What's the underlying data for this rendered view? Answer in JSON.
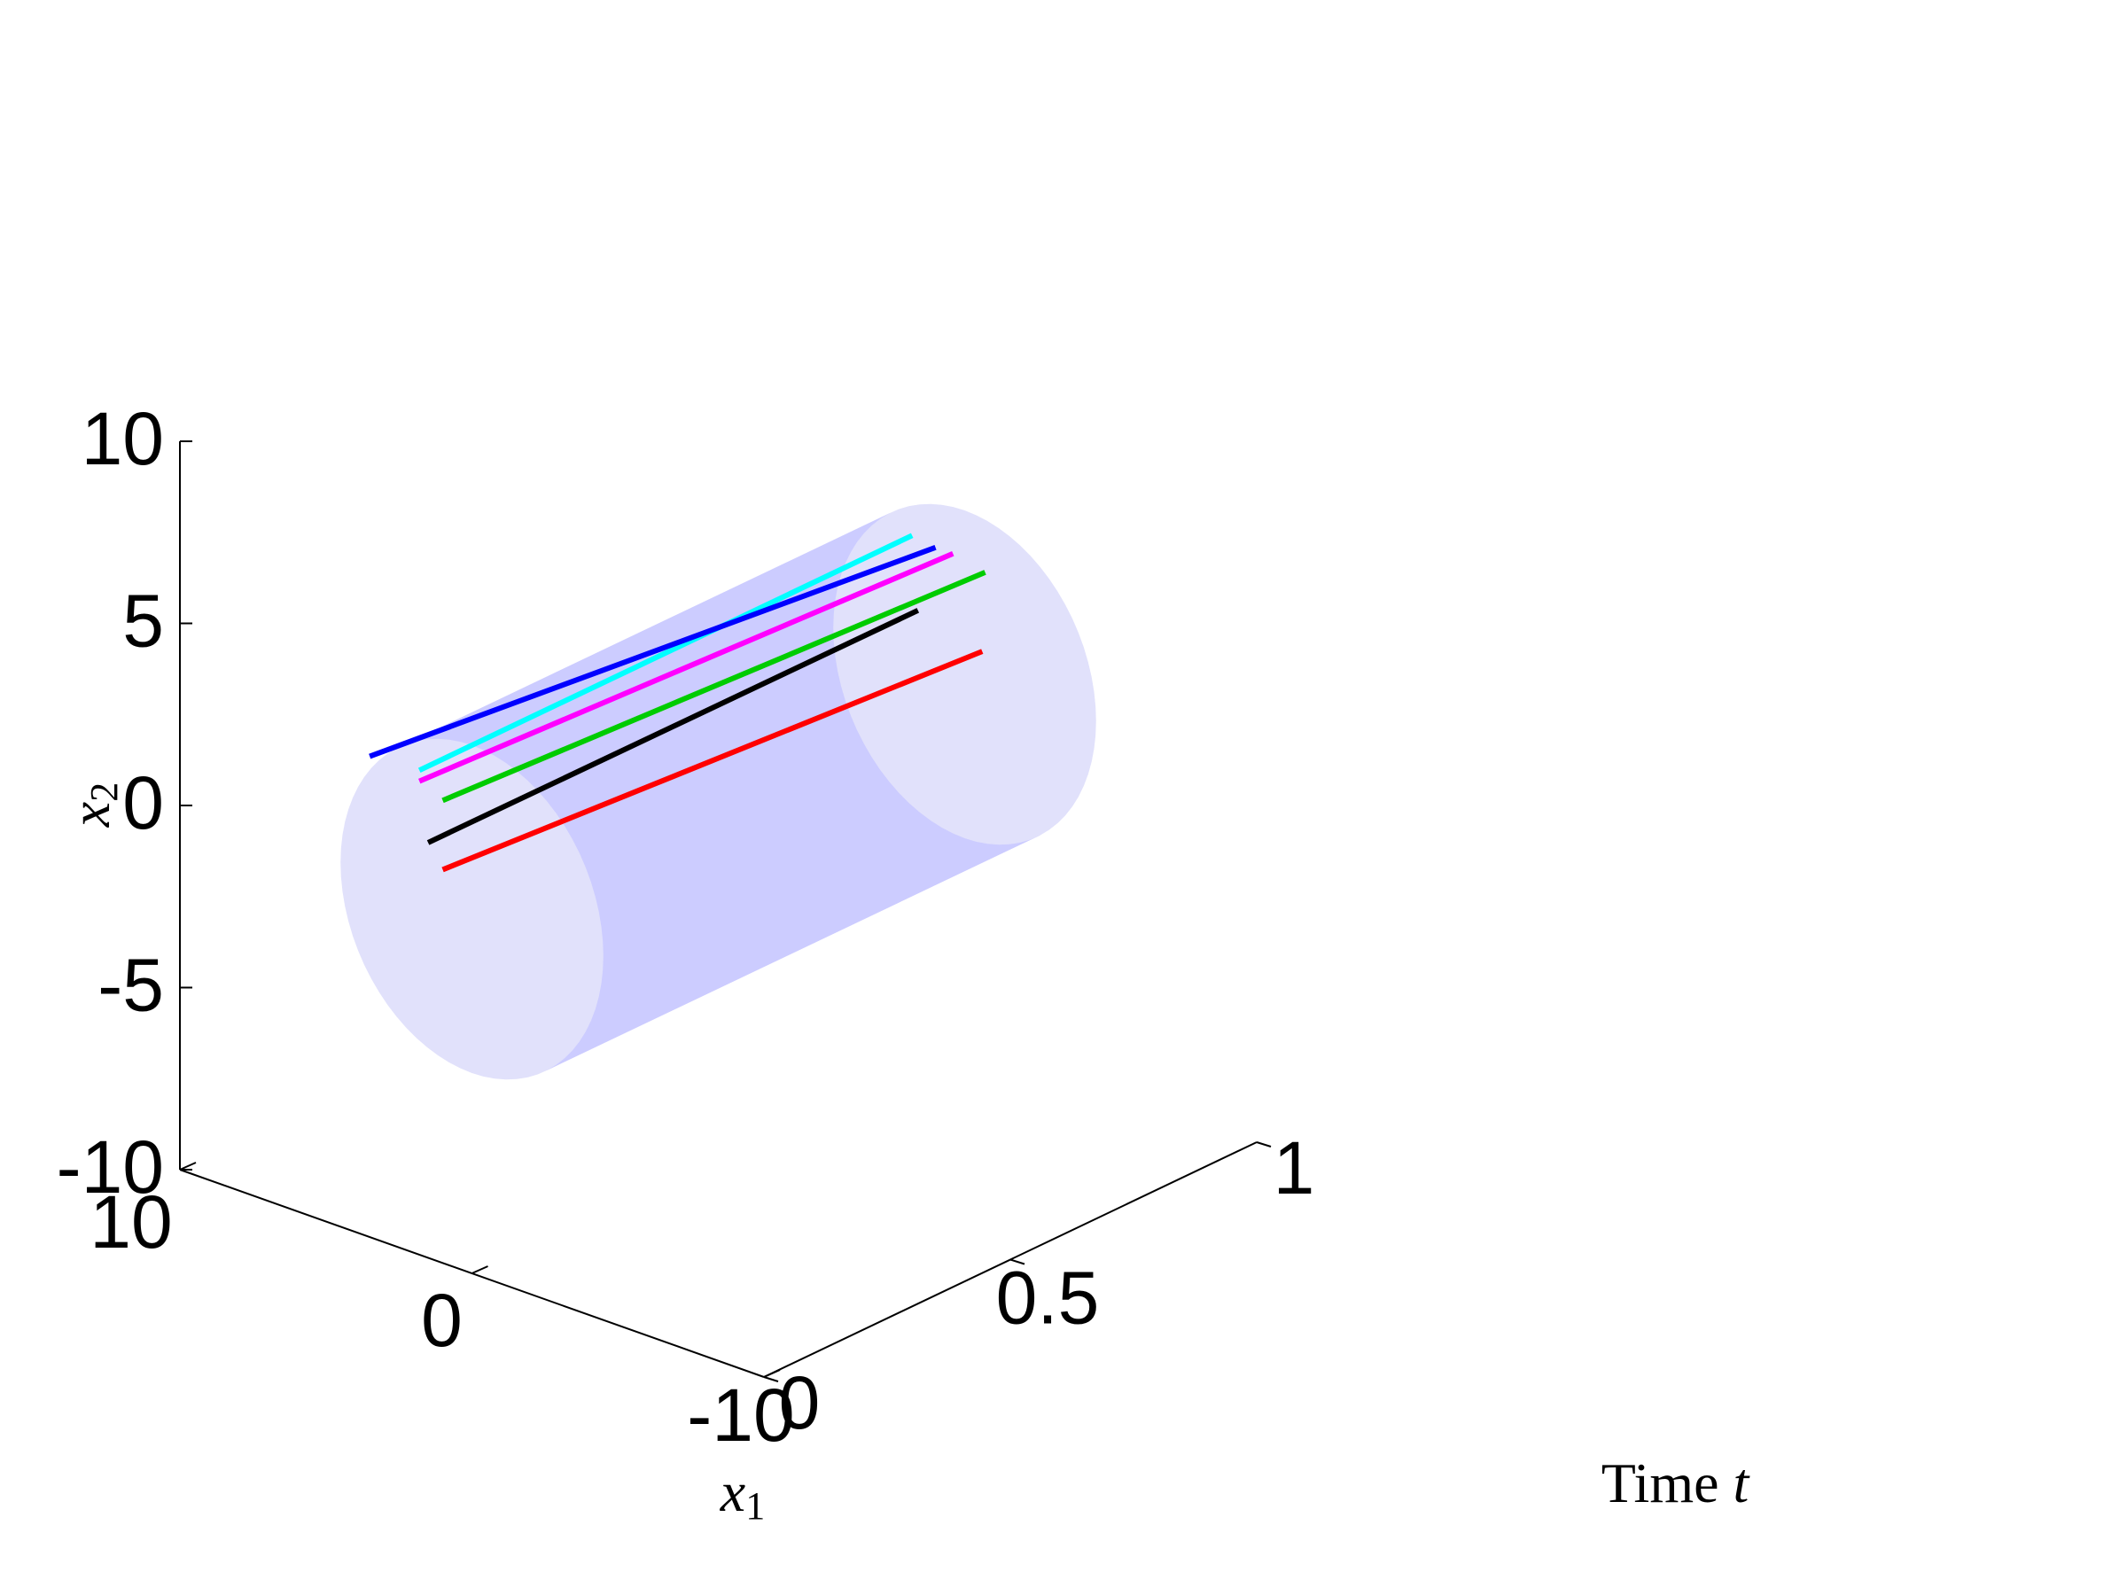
{
  "chart_data": {
    "type": "line",
    "projection": "3d",
    "title": "",
    "xlabel": "Time t",
    "xlabel_text": "Time",
    "xlabel_var": "t",
    "ylabel": "x1",
    "zlabel": "x2",
    "xlim": [
      0,
      1
    ],
    "ylim": [
      -10,
      10
    ],
    "zlim": [
      -10,
      10
    ],
    "x_ticks": [
      {
        "value": 0,
        "label": "0"
      },
      {
        "value": 0.5,
        "label": "0.5"
      },
      {
        "value": 1,
        "label": "1"
      }
    ],
    "y_ticks": [
      {
        "value": -10,
        "label": "-10"
      },
      {
        "value": 0,
        "label": "0"
      },
      {
        "value": 10,
        "label": "10"
      }
    ],
    "z_ticks": [
      {
        "value": -10,
        "label": "-10"
      },
      {
        "value": -5,
        "label": "-5"
      },
      {
        "value": 0,
        "label": "0"
      },
      {
        "value": 5,
        "label": "5"
      },
      {
        "value": 10,
        "label": "10"
      }
    ],
    "grid": false,
    "tube": {
      "radius": 4.5,
      "t_range": [
        0,
        1
      ],
      "color": "#ccccff",
      "cap_color": "#e1e1fb"
    },
    "series": [
      {
        "color": "#00ffff",
        "t": [
          0,
          1
        ],
        "x1": [
          1.8,
          1.8
        ],
        "x2": [
          3.3,
          3.3
        ]
      },
      {
        "color": "#ff00ff",
        "t": [
          0,
          1
        ],
        "x1": [
          1.8,
          0.4
        ],
        "x2": [
          3.0,
          3.2
        ]
      },
      {
        "color": "#00cc00",
        "t": [
          0,
          1
        ],
        "x1": [
          1.0,
          -0.7
        ],
        "x2": [
          2.7,
          3.0
        ]
      },
      {
        "color": "#0000ff",
        "t": [
          0,
          1
        ],
        "x1": [
          3.5,
          1.0
        ],
        "x2": [
          3.2,
          3.2
        ]
      },
      {
        "color": "#000000",
        "t": [
          0,
          1
        ],
        "x1": [
          1.5,
          1.6
        ],
        "x2": [
          1.4,
          1.3
        ]
      },
      {
        "color": "#ff0000",
        "t": [
          0,
          1
        ],
        "x1": [
          1.0,
          -0.6
        ],
        "x2": [
          0.8,
          0.8
        ]
      }
    ]
  }
}
